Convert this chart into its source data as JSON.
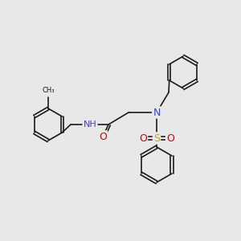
{
  "background_color": "#e8e8e8",
  "figsize": [
    3.0,
    3.0
  ],
  "dpi": 100,
  "bond_color": "#1a1a1a",
  "bond_width": 1.2,
  "atom_colors": {
    "N": "#4040c0",
    "O": "#cc0000",
    "S": "#ccaa00",
    "H": "#708090",
    "C": "#1a1a1a"
  }
}
